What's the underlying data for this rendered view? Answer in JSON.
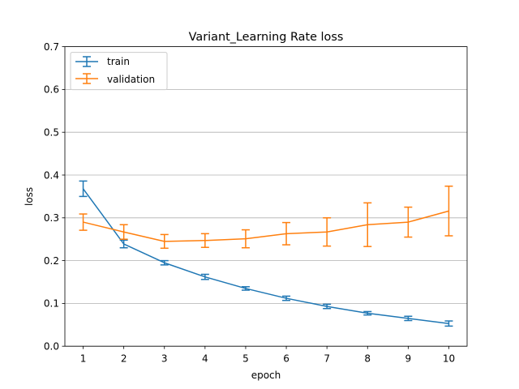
{
  "chart_data": {
    "type": "line",
    "title": "Variant_Learning Rate loss",
    "xlabel": "epoch",
    "ylabel": "loss",
    "x": [
      1,
      2,
      3,
      4,
      5,
      6,
      7,
      8,
      9,
      10
    ],
    "xticks": [
      "1",
      "2",
      "3",
      "4",
      "5",
      "6",
      "7",
      "8",
      "9",
      "10"
    ],
    "ylim": [
      0,
      0.7
    ],
    "yticks": [
      "0.0",
      "0.1",
      "0.2",
      "0.3",
      "0.4",
      "0.5",
      "0.6",
      "0.7"
    ],
    "ytick_values": [
      0,
      0.1,
      0.2,
      0.3,
      0.4,
      0.5,
      0.6,
      0.7
    ],
    "grid": "horizontal",
    "legend_position": "top-left",
    "series": [
      {
        "name": "train",
        "color": "#1f77b4",
        "values": [
          0.368,
          0.239,
          0.195,
          0.162,
          0.135,
          0.112,
          0.093,
          0.077,
          0.065,
          0.053
        ],
        "error": [
          0.018,
          0.009,
          0.005,
          0.006,
          0.004,
          0.005,
          0.005,
          0.004,
          0.005,
          0.006
        ]
      },
      {
        "name": "validation",
        "color": "#ff7f0e",
        "values": [
          0.29,
          0.267,
          0.245,
          0.247,
          0.251,
          0.263,
          0.267,
          0.284,
          0.29,
          0.316
        ],
        "error": [
          0.019,
          0.017,
          0.016,
          0.016,
          0.021,
          0.026,
          0.033,
          0.051,
          0.035,
          0.058
        ]
      }
    ]
  }
}
